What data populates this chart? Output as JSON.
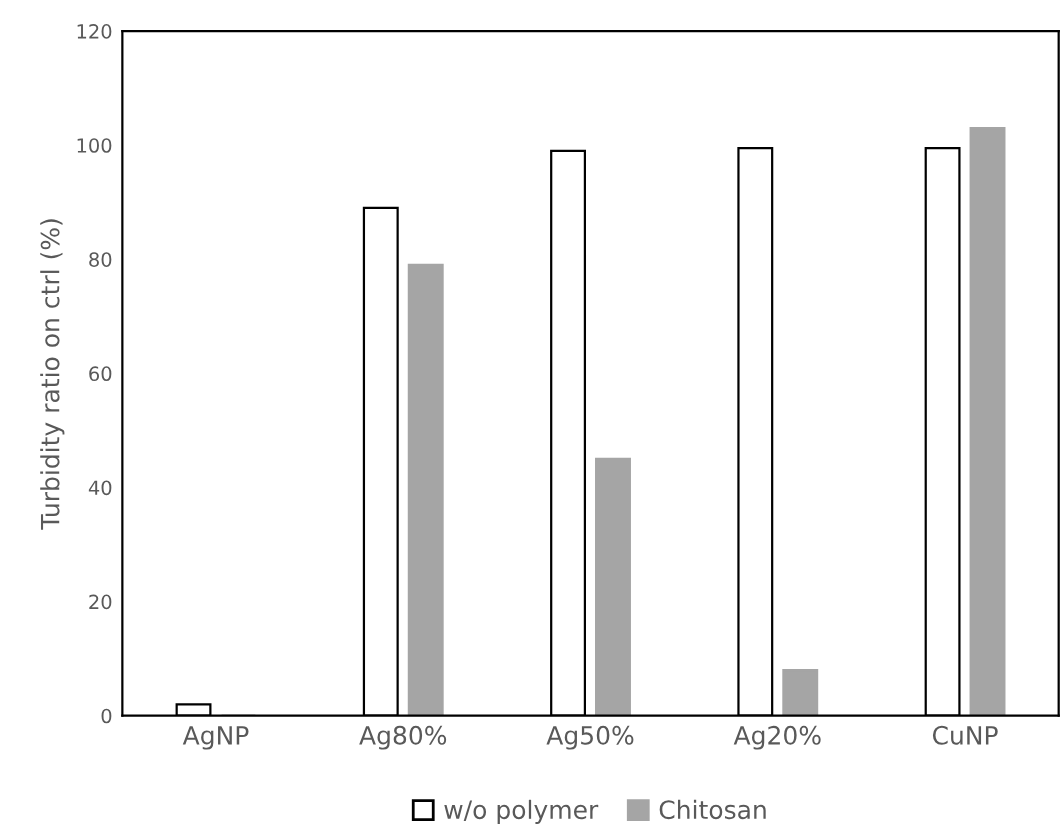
{
  "chart_data": {
    "type": "bar",
    "ylabel": "Turbidity ratio on ctrl (%)",
    "categories": [
      "AgNP",
      "Ag80%",
      "Ag50%",
      "Ag20%",
      "CuNP"
    ],
    "series": [
      {
        "name": "w/o polymer",
        "color": "#ffffff",
        "values": [
          2,
          89,
          99,
          99.5,
          99.5
        ]
      },
      {
        "name": "Chitosan",
        "color": "#a5a5a5",
        "values": [
          0,
          79,
          45,
          8,
          103
        ]
      }
    ],
    "ylim": [
      0,
      120
    ],
    "yticks": [
      0,
      20,
      40,
      60,
      80,
      100,
      120
    ],
    "grid": false,
    "legend": "bottom"
  }
}
